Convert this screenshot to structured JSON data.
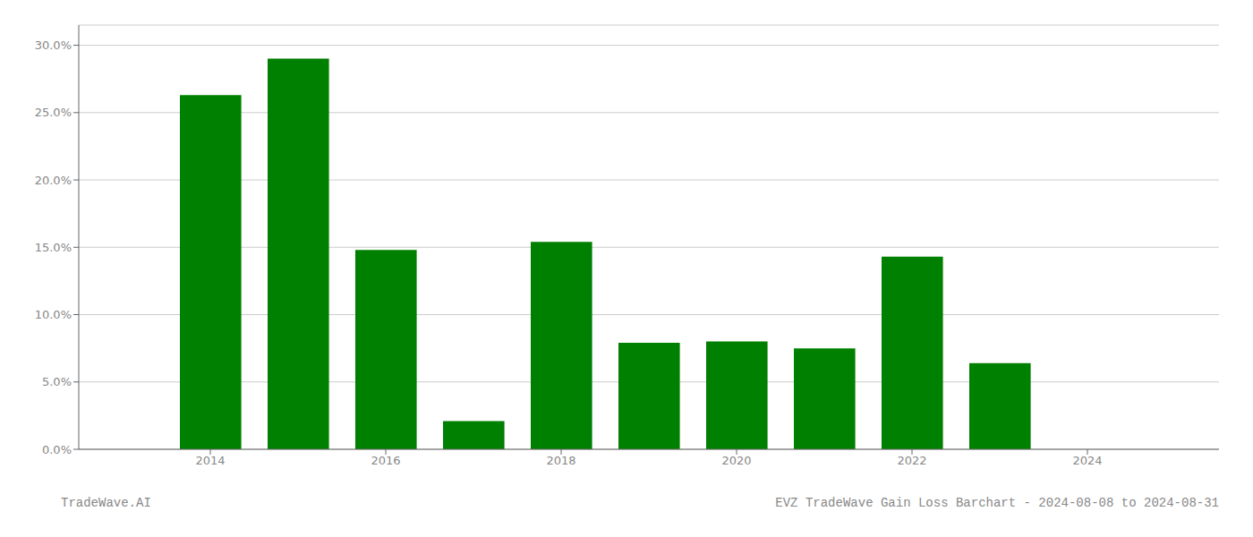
{
  "chart_data": {
    "type": "bar",
    "x": [
      2014,
      2015,
      2016,
      2017,
      2018,
      2019,
      2020,
      2021,
      2022,
      2023
    ],
    "values": [
      0.263,
      0.29,
      0.148,
      0.021,
      0.154,
      0.079,
      0.08,
      0.075,
      0.143,
      0.064
    ],
    "color": "#008000",
    "xlim": [
      2012.5,
      2025.5
    ],
    "xticks": [
      2014,
      2016,
      2018,
      2020,
      2022,
      2024
    ],
    "ylim": [
      0.0,
      0.315
    ],
    "yticks": [
      {
        "value": 0.0,
        "label": "0.0%"
      },
      {
        "value": 0.05,
        "label": "5.0%"
      },
      {
        "value": 0.1,
        "label": "10.0%"
      },
      {
        "value": 0.15,
        "label": "15.0%"
      },
      {
        "value": 0.2,
        "label": "20.0%"
      },
      {
        "value": 0.25,
        "label": "25.0%"
      },
      {
        "value": 0.3,
        "label": "30.0%"
      }
    ],
    "grid": true,
    "annotations": [
      "TradeWave.AI",
      "EVZ TradeWave Gain Loss Barchart - 2024-08-08 to 2024-08-31"
    ]
  }
}
